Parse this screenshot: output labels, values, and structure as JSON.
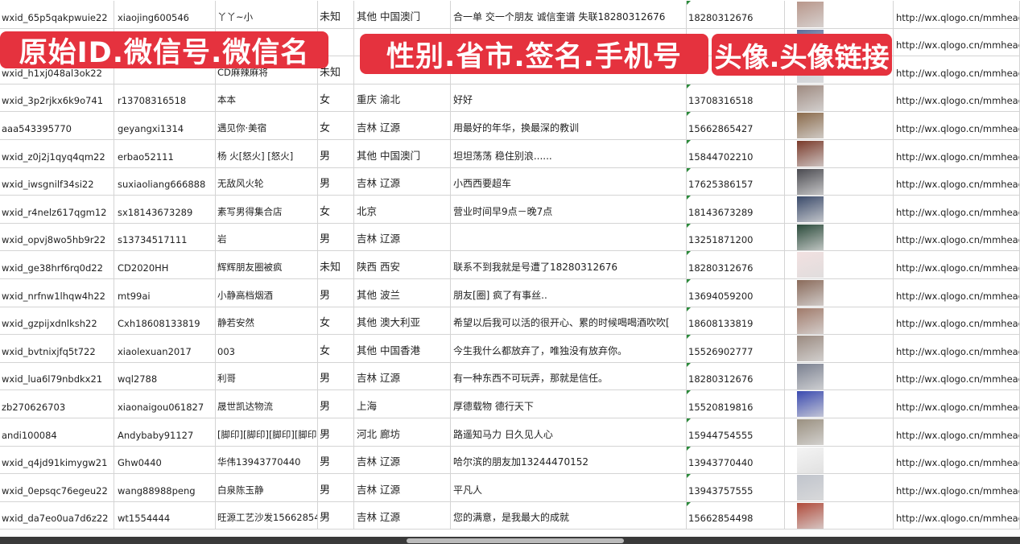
{
  "banners": [
    "原始ID.微信号.微信名",
    "性别.省市.签名.手机号",
    "头像.头像链接"
  ],
  "rows": [
    [
      "wxid_65p5qakpwuie22",
      "xiaojing600546",
      "丫丫~小",
      "未知",
      "其他 中国澳门",
      "合一单 交一个朋友 诚信奎谱 失联18280312676",
      "18280312676",
      "http://wx.qlogo.cn/mmhead"
    ],
    [
      "",
      "",
      "",
      "",
      "",
      "",
      "",
      "http://wx.qlogo.cn/mmhead"
    ],
    [
      "wxid_h1xj048al3ok22",
      "",
      "CD麻辣麻将",
      "未知",
      "",
      "",
      "",
      "http://wx.qlogo.cn/mmhead"
    ],
    [
      "wxid_3p2rjkx6k9o741",
      "r13708316518",
      "本本",
      "女",
      "重庆 渝北",
      "好好",
      "13708316518",
      "http://wx.qlogo.cn/mmhead"
    ],
    [
      "aaa543395770",
      "geyangxi1314",
      "遇见你·美宿",
      "女",
      "吉林 辽源",
      "用最好的年华，换最深的教训",
      "15662865427",
      "http://wx.qlogo.cn/mmhead"
    ],
    [
      "wxid_z0j2j1qyq4qm22",
      "erbao52111",
      "杨 火[怒火] [怒火]",
      "男",
      "其他 中国澳门",
      "坦坦荡荡 稳住别浪......",
      "15844702210",
      "http://wx.qlogo.cn/mmhead"
    ],
    [
      "wxid_iwsgnilf34si22",
      "suxiaoliang666888",
      "无敌风火轮",
      "男",
      "吉林 辽源",
      "小西西要超车",
      "17625386157",
      "http://wx.qlogo.cn/mmhead"
    ],
    [
      "wxid_r4nelz617qgm12",
      "sx18143673289",
      "素写男得集合店",
      "女",
      "北京",
      "营业时间早9点－晚7点",
      "18143673289",
      "http://wx.qlogo.cn/mmhead"
    ],
    [
      "wxid_opvj8wo5hb9r22",
      "s13734517111",
      "岩",
      "男",
      "吉林 辽源",
      "",
      "13251871200",
      "http://wx.qlogo.cn/mmhead"
    ],
    [
      "wxid_ge38hrf6rq0d22",
      "CD2020HH",
      "辉辉朋友圈被疯",
      "未知",
      "陕西 西安",
      "联系不到我就是号遭了18280312676",
      "18280312676",
      "http://wx.qlogo.cn/mmhead"
    ],
    [
      "wxid_nrfnw1lhqw4h22",
      "mt99ai",
      "小静高档烟酒",
      "男",
      "其他 波兰",
      "朋友[圈] 疯了有事丝..",
      "13694059200",
      "http://wx.qlogo.cn/mmhead"
    ],
    [
      "wxid_gzpijxdnlksh22",
      "Cxh18608133819",
      "静若安然",
      "女",
      "其他 澳大利亚",
      "希望以后我可以活的很开心、累的时候喝喝酒吹吹[",
      "18608133819",
      "http://wx.qlogo.cn/mmhead"
    ],
    [
      "wxid_bvtnixjfq5t722",
      "xiaolexuan2017",
      "003",
      "女",
      "其他 中国香港",
      "今生我什么都放弃了，唯独没有放弃你。",
      "15526902777",
      "http://wx.qlogo.cn/mmhead"
    ],
    [
      "wxid_lua6l79nbdkx21",
      "wql2788",
      "利哥",
      "男",
      "吉林 辽源",
      "有一种东西不可玩弄，那就是信任。",
      "18280312676",
      "http://wx.qlogo.cn/mmhead"
    ],
    [
      "zb270626703",
      "xiaonaigou061827",
      "晟世凯达物流",
      "男",
      "上海",
      "厚德载物 德行天下",
      "15520819816",
      "http://wx.qlogo.cn/mmhead"
    ],
    [
      "andi100084",
      "Andybaby91127",
      "[脚印][脚印][脚印][脚印]",
      "男",
      "河北 廊坊",
      "路遥知马力 日久见人心",
      "15944754555",
      "http://wx.qlogo.cn/mmhead"
    ],
    [
      "wxid_q4jd91kimygw21",
      "Ghw0440",
      "华伟13943770440",
      "男",
      "吉林 辽源",
      "哈尔滨的朋友加13244470152",
      "13943770440",
      "http://wx.qlogo.cn/mmhead"
    ],
    [
      "wxid_0epsqc76egeu22",
      "wang88988peng",
      "白泉陈玉静",
      "男",
      "吉林 辽源",
      "平凡人",
      "13943757555",
      "http://wx.qlogo.cn/mmhead"
    ],
    [
      "wxid_da7eo0ua7d6z22",
      "wt1554444",
      "旺源工艺沙发15662854",
      "男",
      "吉林 辽源",
      "您的满意，是我最大的成就",
      "15662854498",
      "http://wx.qlogo.cn/mmhead"
    ]
  ],
  "avatar_colors": [
    "#b8968a",
    "#5a6c9a",
    "#c7ccd6",
    "#9e8a80",
    "#8a6a4a",
    "#7a3a2a",
    "#4a4a50",
    "#3a4a6a",
    "#2a4a3a",
    "#f2e0e0",
    "#8a6a5a",
    "#a07a6a",
    "#9a8a80",
    "#7a8090",
    "#3a4ab0",
    "#9a9080",
    "#f4f4f4",
    "#c0c4cc",
    "#b04a3a"
  ]
}
